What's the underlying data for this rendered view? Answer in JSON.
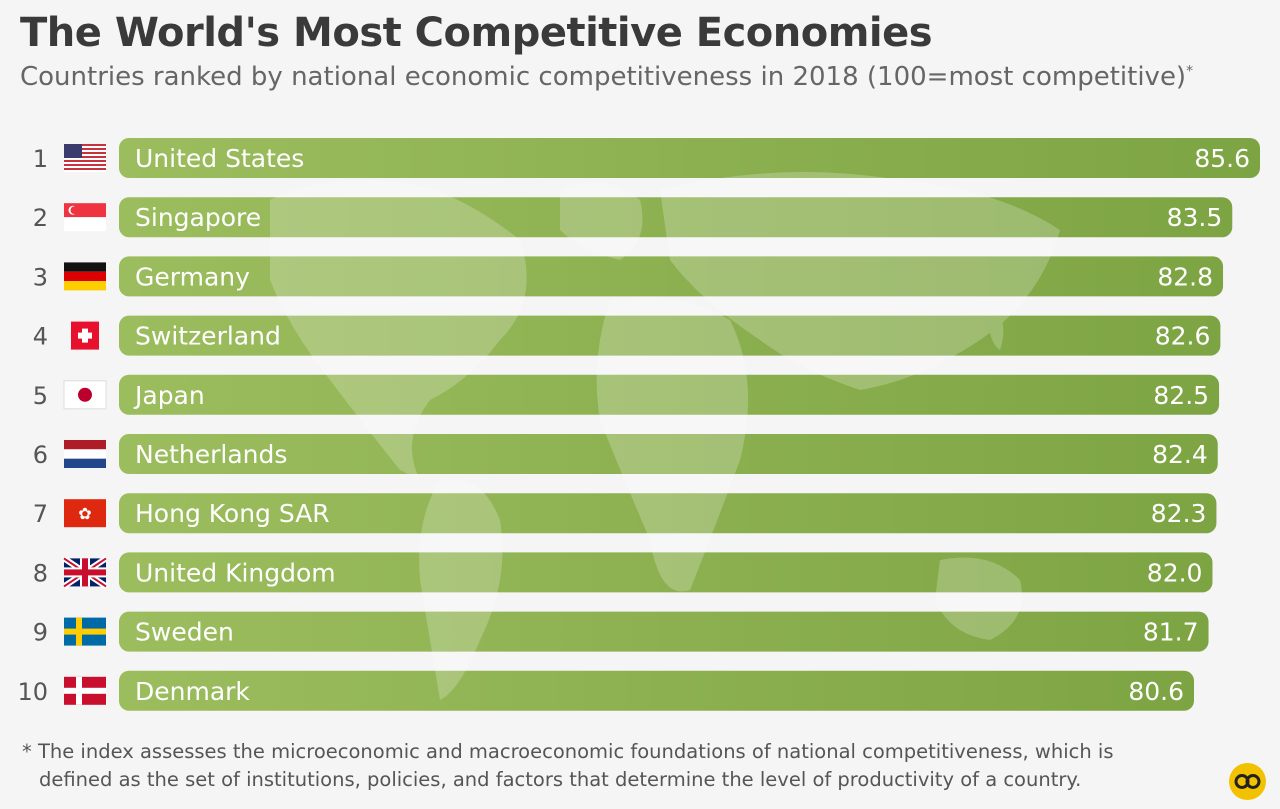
{
  "title": "The World's Most Competitive Economies",
  "subtitle": "Countries ranked by national economic competitiveness in 2018 (100=most competitive)",
  "subtitle_mark": "*",
  "footnote_line1": "* The index assesses the microeconomic and macroeconomic foundations of national competitiveness, which is",
  "footnote_line2": "defined as the set of institutions, policies, and factors that determine the level of productivity of a country.",
  "colors": {
    "bar": "#8db04e",
    "bar_dark": "#6f9a3a",
    "text_on_bar": "#ffffff",
    "rank": "#555555"
  },
  "chart_data": {
    "type": "bar",
    "orientation": "horizontal",
    "categories": [
      "United States",
      "Singapore",
      "Germany",
      "Switzerland",
      "Japan",
      "Netherlands",
      "Hong Kong SAR",
      "United Kingdom",
      "Sweden",
      "Denmark"
    ],
    "ranks": [
      "1",
      "2",
      "3",
      "4",
      "5",
      "6",
      "7",
      "8",
      "9",
      "10"
    ],
    "values": [
      85.6,
      83.5,
      82.8,
      82.6,
      82.5,
      82.4,
      82.3,
      82.0,
      81.7,
      80.6
    ],
    "value_labels": [
      "85.6",
      "83.5",
      "82.8",
      "82.6",
      "82.5",
      "82.4",
      "82.3",
      "82.0",
      "81.7",
      "80.6"
    ],
    "flags": [
      "usa-flag-icon",
      "singapore-flag-icon",
      "germany-flag-icon",
      "switzerland-flag-icon",
      "japan-flag-icon",
      "netherlands-flag-icon",
      "hong-kong-flag-icon",
      "uk-flag-icon",
      "sweden-flag-icon",
      "denmark-flag-icon"
    ],
    "xlim": [
      0,
      100
    ],
    "grid": false,
    "legend": "none"
  }
}
